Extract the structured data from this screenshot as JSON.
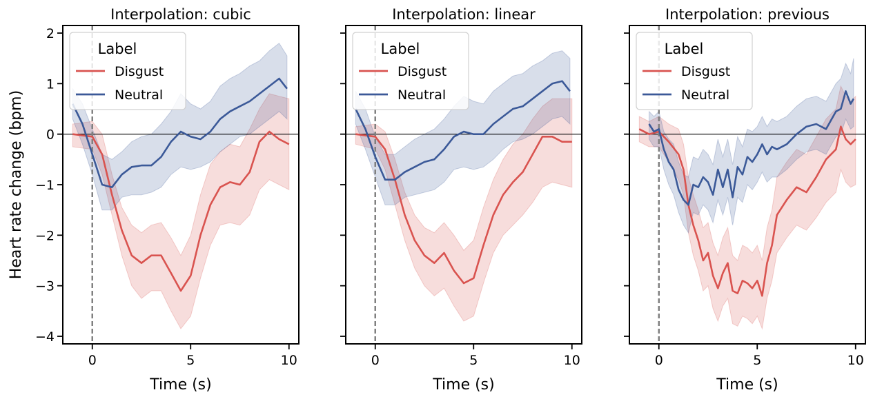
{
  "figure": {
    "ylabel": "Heart rate change (bpm)",
    "legend_title": "Label",
    "colors": {
      "Disgust": "#d9534f",
      "Neutral": "#3b5998",
      "zero_line": "#000000",
      "stimulus_line": "#808080"
    }
  },
  "chart_data": [
    {
      "type": "line",
      "title": "Interpolation: cubic",
      "xlabel": "Time (s)",
      "ylabel": "Heart rate change (bpm)",
      "xlim": [
        -1.5,
        10.5
      ],
      "ylim": [
        -4.15,
        2.15
      ],
      "xticks": [
        0,
        5,
        10
      ],
      "yticks": [
        -4,
        -3,
        -2,
        -1,
        0,
        1,
        2
      ],
      "hline": 0,
      "vline": 0,
      "grid": false,
      "legend": {
        "title": "Label",
        "position": "top-left",
        "entries": [
          "Disgust",
          "Neutral"
        ]
      },
      "series": [
        {
          "name": "Disgust",
          "x": [
            -1,
            0,
            0.5,
            1,
            1.5,
            2,
            2.5,
            3,
            3.5,
            4,
            4.5,
            5,
            5.5,
            6,
            6.5,
            7,
            7.5,
            8,
            8.5,
            9,
            9.5,
            10
          ],
          "y": [
            0.0,
            -0.05,
            -0.4,
            -1.2,
            -1.9,
            -2.4,
            -2.55,
            -2.4,
            -2.4,
            -2.75,
            -3.1,
            -2.8,
            -2.0,
            -1.4,
            -1.05,
            -0.95,
            -1.0,
            -0.75,
            -0.15,
            0.05,
            -0.1,
            -0.2
          ],
          "lower": [
            -0.25,
            -0.3,
            -0.8,
            -1.6,
            -2.4,
            -3.0,
            -3.25,
            -3.1,
            -3.1,
            -3.5,
            -3.85,
            -3.6,
            -2.85,
            -2.2,
            -1.8,
            -1.75,
            -1.8,
            -1.6,
            -1.1,
            -0.9,
            -1.0,
            -1.1
          ],
          "upper": [
            0.2,
            0.25,
            0.0,
            -0.8,
            -1.45,
            -1.8,
            -1.95,
            -1.8,
            -1.75,
            -2.05,
            -2.4,
            -2.0,
            -1.2,
            -0.6,
            -0.35,
            -0.2,
            -0.25,
            0.1,
            0.5,
            0.8,
            0.75,
            0.7
          ]
        },
        {
          "name": "Neutral",
          "x": [
            -1,
            -0.5,
            0,
            0.5,
            1,
            1.5,
            2,
            2.5,
            3,
            3.5,
            4,
            4.5,
            5,
            5.5,
            6,
            6.5,
            7,
            7.5,
            8,
            8.5,
            9,
            9.5,
            9.9
          ],
          "y": [
            0.6,
            0.2,
            -0.4,
            -1.0,
            -1.05,
            -0.8,
            -0.65,
            -0.62,
            -0.62,
            -0.45,
            -0.15,
            0.05,
            -0.05,
            -0.1,
            0.05,
            0.3,
            0.45,
            0.55,
            0.65,
            0.8,
            0.95,
            1.1,
            0.9
          ],
          "lower": [
            0.3,
            -0.2,
            -0.8,
            -1.5,
            -1.5,
            -1.25,
            -1.2,
            -1.2,
            -1.15,
            -1.05,
            -0.8,
            -0.65,
            -0.7,
            -0.65,
            -0.55,
            -0.35,
            -0.2,
            -0.05,
            0.0,
            0.15,
            0.3,
            0.45,
            0.3
          ],
          "upper": [
            0.9,
            0.6,
            0.1,
            -0.4,
            -0.5,
            -0.35,
            -0.15,
            -0.05,
            0.0,
            0.2,
            0.45,
            0.8,
            0.6,
            0.5,
            0.65,
            0.95,
            1.1,
            1.2,
            1.35,
            1.45,
            1.65,
            1.8,
            1.55
          ]
        }
      ]
    },
    {
      "type": "line",
      "title": "Interpolation: linear",
      "xlabel": "Time (s)",
      "ylabel": "",
      "xlim": [
        -1.5,
        10.5
      ],
      "ylim": [
        -4.15,
        2.15
      ],
      "xticks": [
        0,
        5,
        10
      ],
      "yticks": [
        -4,
        -3,
        -2,
        -1,
        0,
        1,
        2
      ],
      "hline": 0,
      "vline": 0,
      "grid": false,
      "legend": {
        "title": "Label",
        "position": "top-left",
        "entries": [
          "Disgust",
          "Neutral"
        ]
      },
      "series": [
        {
          "name": "Disgust",
          "x": [
            -1,
            0,
            0.5,
            1,
            1.5,
            2,
            2.5,
            3,
            3.5,
            4,
            4.5,
            5,
            5.5,
            6,
            6.5,
            7,
            7.5,
            8,
            8.5,
            9,
            9.5,
            10
          ],
          "y": [
            0.0,
            -0.05,
            -0.3,
            -0.9,
            -1.6,
            -2.1,
            -2.4,
            -2.55,
            -2.35,
            -2.7,
            -2.95,
            -2.85,
            -2.2,
            -1.6,
            -1.2,
            -0.95,
            -0.75,
            -0.4,
            -0.05,
            -0.05,
            -0.15,
            -0.15
          ],
          "lower": [
            -0.2,
            -0.3,
            -0.7,
            -1.4,
            -2.1,
            -2.65,
            -3.0,
            -3.2,
            -3.05,
            -3.4,
            -3.7,
            -3.6,
            -2.95,
            -2.35,
            -2.0,
            -1.8,
            -1.6,
            -1.35,
            -1.05,
            -0.95,
            -1.0,
            -1.05
          ],
          "upper": [
            0.15,
            0.2,
            0.05,
            -0.5,
            -1.15,
            -1.6,
            -1.85,
            -1.95,
            -1.75,
            -2.0,
            -2.3,
            -2.1,
            -1.45,
            -0.9,
            -0.5,
            -0.2,
            0.0,
            0.3,
            0.55,
            0.7,
            0.7,
            0.7
          ]
        },
        {
          "name": "Neutral",
          "x": [
            -1,
            -0.5,
            0,
            0.5,
            1,
            1.5,
            2,
            2.5,
            3,
            3.5,
            4,
            4.5,
            5,
            5.5,
            6,
            6.5,
            7,
            7.5,
            8,
            8.5,
            9,
            9.5,
            9.9
          ],
          "y": [
            0.5,
            0.1,
            -0.45,
            -0.9,
            -0.9,
            -0.75,
            -0.65,
            -0.55,
            -0.5,
            -0.3,
            -0.05,
            0.05,
            0.0,
            0.0,
            0.2,
            0.35,
            0.5,
            0.55,
            0.7,
            0.85,
            1.0,
            1.05,
            0.85
          ],
          "lower": [
            0.2,
            -0.3,
            -0.85,
            -1.4,
            -1.4,
            -1.25,
            -1.2,
            -1.15,
            -1.1,
            -0.95,
            -0.7,
            -0.65,
            -0.7,
            -0.65,
            -0.5,
            -0.3,
            -0.15,
            -0.1,
            0.0,
            0.15,
            0.3,
            0.35,
            0.2
          ],
          "upper": [
            0.85,
            0.5,
            -0.05,
            -0.4,
            -0.4,
            -0.25,
            -0.1,
            0.0,
            0.1,
            0.3,
            0.55,
            0.75,
            0.65,
            0.6,
            0.85,
            1.0,
            1.15,
            1.2,
            1.35,
            1.45,
            1.6,
            1.65,
            1.5
          ]
        }
      ]
    },
    {
      "type": "line",
      "title": "Interpolation: previous",
      "xlabel": "Time (s)",
      "ylabel": "",
      "xlim": [
        -1.5,
        10.5
      ],
      "ylim": [
        -4.15,
        2.15
      ],
      "xticks": [
        0,
        5,
        10
      ],
      "yticks": [
        -4,
        -3,
        -2,
        -1,
        0,
        1,
        2
      ],
      "hline": 0,
      "vline": 0,
      "grid": false,
      "legend": {
        "title": "Label",
        "position": "top-left",
        "entries": [
          "Disgust",
          "Neutral"
        ]
      },
      "series": [
        {
          "name": "Disgust",
          "x": [
            -1,
            -0.5,
            0,
            0.5,
            1,
            1.25,
            1.5,
            1.75,
            2,
            2.25,
            2.5,
            2.75,
            3,
            3.25,
            3.5,
            3.75,
            4,
            4.25,
            4.5,
            4.75,
            5,
            5.25,
            5.5,
            5.75,
            6,
            6.5,
            7,
            7.5,
            8,
            8.5,
            9,
            9.25,
            9.5,
            9.75,
            10
          ],
          "y": [
            0.1,
            0.0,
            0.05,
            -0.15,
            -0.4,
            -0.7,
            -1.4,
            -1.8,
            -2.1,
            -2.5,
            -2.35,
            -2.8,
            -3.05,
            -2.75,
            -2.55,
            -3.1,
            -3.15,
            -2.9,
            -2.95,
            -3.05,
            -2.9,
            -3.2,
            -2.55,
            -2.2,
            -1.6,
            -1.3,
            -1.05,
            -1.15,
            -0.85,
            -0.5,
            -0.3,
            0.15,
            -0.1,
            -0.2,
            -0.1
          ],
          "lower": [
            -0.15,
            -0.25,
            -0.25,
            -0.55,
            -0.9,
            -1.2,
            -1.95,
            -2.4,
            -2.7,
            -3.1,
            -3.0,
            -3.45,
            -3.7,
            -3.4,
            -3.25,
            -3.75,
            -3.8,
            -3.6,
            -3.65,
            -3.75,
            -3.6,
            -3.85,
            -3.25,
            -2.9,
            -2.35,
            -2.05,
            -1.8,
            -1.9,
            -1.65,
            -1.35,
            -1.15,
            -0.7,
            -0.95,
            -1.05,
            -1.0
          ],
          "upper": [
            0.35,
            0.25,
            0.35,
            0.2,
            0.1,
            -0.2,
            -0.85,
            -1.2,
            -1.5,
            -1.85,
            -1.75,
            -2.15,
            -2.4,
            -2.05,
            -1.85,
            -2.4,
            -2.5,
            -2.2,
            -2.25,
            -2.35,
            -2.2,
            -2.5,
            -1.85,
            -1.5,
            -0.85,
            -0.55,
            -0.3,
            -0.4,
            -0.05,
            0.3,
            0.5,
            0.95,
            0.75,
            0.65,
            0.75
          ]
        },
        {
          "name": "Neutral",
          "x": [
            -0.5,
            -0.25,
            0,
            0.25,
            0.5,
            0.75,
            1,
            1.25,
            1.5,
            1.75,
            2,
            2.25,
            2.5,
            2.75,
            3,
            3.25,
            3.5,
            3.75,
            4,
            4.25,
            4.5,
            4.75,
            5,
            5.25,
            5.5,
            5.75,
            6,
            6.5,
            7,
            7.5,
            8,
            8.5,
            9,
            9.25,
            9.5,
            9.75,
            9.9
          ],
          "y": [
            0.2,
            0.05,
            0.1,
            -0.3,
            -0.55,
            -0.7,
            -1.1,
            -1.3,
            -1.4,
            -1.0,
            -1.05,
            -0.85,
            -0.95,
            -1.2,
            -0.7,
            -1.05,
            -0.7,
            -1.25,
            -0.65,
            -0.8,
            -0.45,
            -0.55,
            -0.4,
            -0.2,
            -0.4,
            -0.25,
            -0.3,
            -0.2,
            0.0,
            0.15,
            0.2,
            0.1,
            0.45,
            0.5,
            0.85,
            0.6,
            0.7
          ],
          "lower": [
            -0.1,
            -0.25,
            -0.25,
            -0.7,
            -1.0,
            -1.2,
            -1.55,
            -1.8,
            -1.95,
            -1.55,
            -1.6,
            -1.4,
            -1.5,
            -1.75,
            -1.3,
            -1.6,
            -1.25,
            -1.8,
            -1.25,
            -1.35,
            -1.0,
            -1.1,
            -0.95,
            -0.75,
            -0.95,
            -0.85,
            -0.85,
            -0.7,
            -0.5,
            -0.35,
            -0.3,
            -0.4,
            -0.05,
            0.0,
            0.3,
            0.1,
            0.15
          ],
          "upper": [
            0.45,
            0.35,
            0.45,
            0.05,
            -0.1,
            -0.2,
            -0.55,
            -0.8,
            -0.85,
            -0.45,
            -0.5,
            -0.3,
            -0.4,
            -0.6,
            -0.1,
            -0.45,
            -0.1,
            -0.6,
            -0.05,
            -0.25,
            0.1,
            0.05,
            0.15,
            0.35,
            0.15,
            0.3,
            0.25,
            0.35,
            0.55,
            0.7,
            0.75,
            0.65,
            1.0,
            1.1,
            1.4,
            1.2,
            1.5
          ]
        }
      ]
    }
  ]
}
